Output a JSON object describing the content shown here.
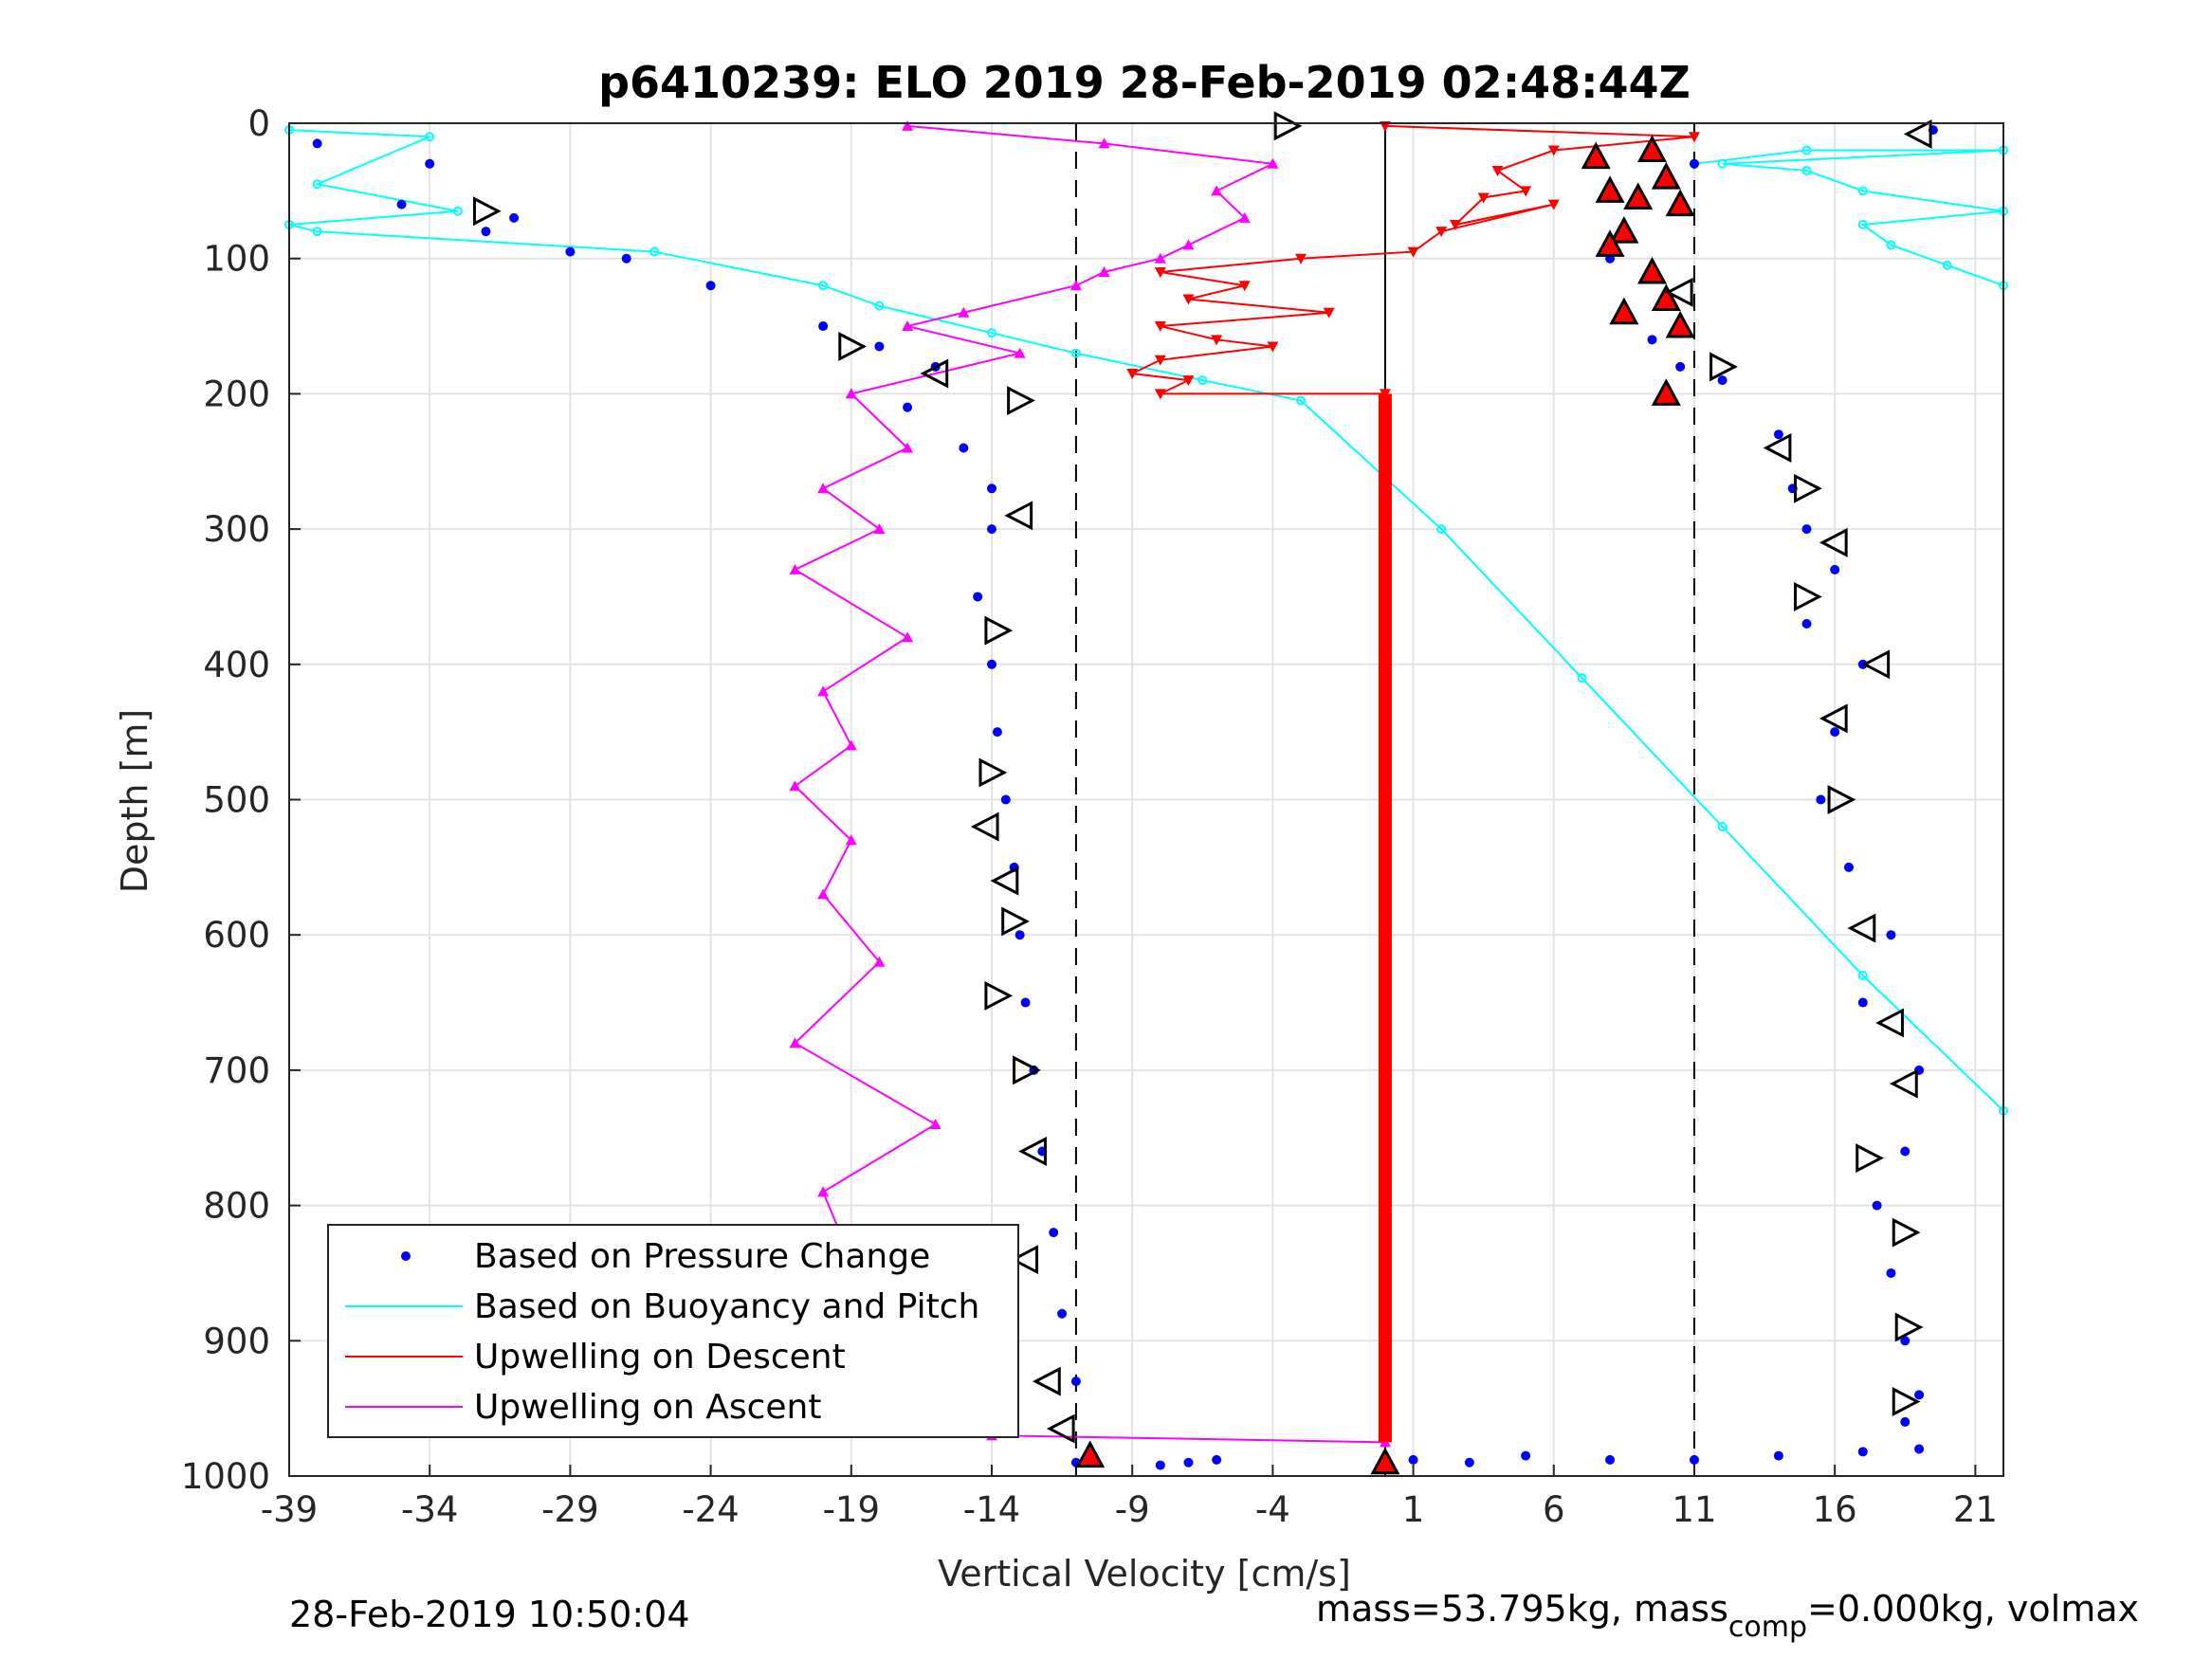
{
  "chart_data": {
    "type": "scatter",
    "title": "p6410239: ELO 2019 28-Feb-2019 02:48:44Z",
    "xlabel": "Vertical Velocity [cm/s]",
    "ylabel": "Depth [m]",
    "xlim": [
      -39,
      22
    ],
    "ylim": [
      0,
      1000
    ],
    "y_reversed": true,
    "grid": true,
    "xticks": [
      -39,
      -34,
      -29,
      -24,
      -19,
      -14,
      -9,
      -4,
      1,
      6,
      11,
      16,
      21
    ],
    "yticks": [
      0,
      100,
      200,
      300,
      400,
      500,
      600,
      700,
      800,
      900,
      1000
    ],
    "vlines": [
      {
        "x": -11,
        "style": "dashed",
        "color": "#000000"
      },
      {
        "x": 0,
        "style": "solid",
        "color": "#000000"
      },
      {
        "x": 11,
        "style": "dashed",
        "color": "#000000"
      }
    ],
    "legend": {
      "position": "bottom-left",
      "entries": [
        {
          "label": "Based on Pressure Change",
          "color": "#0000ff",
          "kind": "dot"
        },
        {
          "label": "Based on Buoyancy and Pitch",
          "color": "#00ffff",
          "kind": "line"
        },
        {
          "label": "Upwelling on Descent",
          "color": "#ff0000",
          "kind": "line"
        },
        {
          "label": "Upwelling on Ascent",
          "color": "#ff00ff",
          "kind": "line"
        }
      ]
    },
    "series": [
      {
        "name": "Based on Buoyancy and Pitch",
        "color": "#00ffff",
        "x": [
          -39,
          -34,
          -38,
          -33,
          -39,
          -38,
          -26,
          -20,
          -18,
          -14,
          -11,
          -6.5,
          -3,
          2,
          7,
          12,
          17,
          22
        ],
        "y": [
          5,
          10,
          45,
          65,
          75,
          80,
          95,
          120,
          135,
          155,
          170,
          190,
          205,
          300,
          410,
          520,
          630,
          730
        ]
      },
      {
        "name": "Based on Buoyancy and Pitch (descent surface)",
        "color": "#00ffff",
        "x": [
          11,
          15,
          22,
          12,
          15,
          17,
          22,
          17,
          18,
          20,
          22
        ],
        "y": [
          30,
          20,
          20,
          30,
          35,
          50,
          65,
          75,
          90,
          105,
          120
        ]
      },
      {
        "name": "Based on Pressure Change (descent)",
        "color": "#0000ff",
        "x": [
          -38,
          -34,
          -35,
          -32,
          -31,
          -29,
          -27,
          -24,
          -20,
          -18,
          -16,
          -17,
          -15,
          -14,
          -14,
          -14.5,
          -14,
          -13.8,
          -13.5,
          -13.2,
          -13,
          -12.8,
          -12.5,
          -12.2,
          -11.8,
          -11.5,
          -11,
          -10.5
        ],
        "y": [
          15,
          30,
          60,
          80,
          70,
          95,
          100,
          120,
          150,
          165,
          180,
          210,
          240,
          270,
          300,
          350,
          400,
          450,
          500,
          550,
          600,
          650,
          700,
          760,
          820,
          880,
          930,
          990
        ]
      },
      {
        "name": "Based on Pressure Change (ascent)",
        "color": "#0000ff",
        "x": [
          19.5,
          11,
          9,
          8,
          10,
          9.5,
          10.5,
          12,
          10,
          14,
          14.5,
          15,
          16,
          15,
          17,
          16,
          15.5,
          16.5,
          18,
          17,
          19,
          18.5,
          17.5,
          18,
          18.5,
          19,
          18.5,
          19
        ],
        "y": [
          5,
          30,
          60,
          100,
          130,
          160,
          180,
          190,
          200,
          230,
          270,
          300,
          330,
          370,
          400,
          450,
          500,
          550,
          600,
          650,
          700,
          760,
          800,
          850,
          900,
          940,
          960,
          980
        ]
      },
      {
        "name": "Upwelling on Descent",
        "color": "#ff0000",
        "x": [
          0,
          11,
          6,
          4,
          5,
          3.5,
          2.5,
          6,
          2,
          1,
          -3,
          -8,
          -5,
          -7,
          -2,
          -8,
          -6,
          -4,
          -8,
          -9,
          -7,
          -8,
          0,
          0,
          0
        ],
        "y": [
          2,
          10,
          20,
          35,
          50,
          55,
          75,
          60,
          80,
          95,
          100,
          110,
          120,
          130,
          140,
          150,
          160,
          165,
          175,
          185,
          190,
          200,
          200,
          600,
          975
        ]
      },
      {
        "name": "Upwelling on Ascent",
        "color": "#ff00ff",
        "x": [
          -17,
          -10,
          -4,
          -6,
          -5,
          -7,
          -8,
          -10,
          -11,
          -15,
          -17,
          -13,
          -19,
          -17,
          -20,
          -18,
          -21,
          -17,
          -20,
          -19,
          -21,
          -19,
          -20,
          -18,
          -21,
          -16,
          -20,
          -19,
          -21,
          -16,
          -15,
          -14,
          0
        ],
        "y": [
          2,
          15,
          30,
          50,
          70,
          90,
          100,
          110,
          120,
          140,
          150,
          170,
          200,
          240,
          270,
          300,
          330,
          380,
          420,
          460,
          490,
          530,
          570,
          620,
          680,
          740,
          790,
          840,
          890,
          940,
          960,
          970,
          975
        ]
      },
      {
        "name": "Based on Pressure Change (bottom)",
        "color": "#0000ff",
        "x": [
          -11,
          -8,
          -7,
          -6,
          0,
          1,
          3,
          5,
          8,
          11,
          14,
          17
        ],
        "y": [
          990,
          992,
          990,
          988,
          992,
          988,
          990,
          985,
          988,
          988,
          985,
          982
        ]
      }
    ],
    "markers": {
      "open_triangles_color": "#000000",
      "filled_red_triangles_color": "#ff0000"
    },
    "red_triangles": {
      "x": [
        9.5,
        7.5,
        10,
        8,
        9,
        10.5,
        8.5,
        8,
        9.5,
        10,
        8.5,
        10.5,
        10,
        -10.5,
        0
      ],
      "y": [
        20,
        25,
        40,
        50,
        55,
        60,
        80,
        90,
        110,
        130,
        140,
        150,
        200,
        985,
        990
      ]
    },
    "open_triangles": {
      "x": [
        -3.5,
        19,
        -32,
        10.5,
        -19,
        -16,
        -13,
        -13,
        12,
        14,
        15,
        16,
        15,
        17.5,
        -13.8,
        16,
        -14,
        -14.2,
        16.2,
        -13.5,
        -13.2,
        17,
        -13.8,
        18,
        -12.8,
        18.5,
        17.2,
        -12.5,
        18.5,
        -12.8,
        18.6,
        -12,
        18.5,
        -11.5
      ],
      "y": [
        2,
        8,
        65,
        125,
        165,
        185,
        205,
        290,
        180,
        240,
        270,
        310,
        350,
        400,
        375,
        440,
        480,
        520,
        500,
        560,
        590,
        595,
        645,
        665,
        700,
        710,
        765,
        760,
        820,
        840,
        890,
        930,
        945,
        965
      ]
    }
  },
  "footer": {
    "left": "28-Feb-2019 10:50:04",
    "right_a": "mass=53.795kg, mass",
    "right_sub": "comp",
    "right_b": "=0.000kg, volmax"
  }
}
